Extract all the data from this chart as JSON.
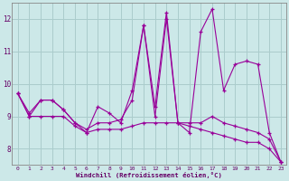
{
  "background_color": "#cce8e8",
  "grid_color": "#aacccc",
  "line_color": "#990099",
  "marker": "+",
  "xlabel": "Windchill (Refroidissement éolien,°C)",
  "xlim": [
    -0.5,
    23.5
  ],
  "ylim": [
    7.5,
    12.5
  ],
  "yticks": [
    8,
    9,
    10,
    11,
    12
  ],
  "xticks": [
    0,
    1,
    2,
    3,
    4,
    5,
    6,
    7,
    8,
    9,
    10,
    11,
    12,
    13,
    14,
    15,
    16,
    17,
    18,
    19,
    20,
    21,
    22,
    23
  ],
  "lines": [
    [
      9.7,
      9.1,
      9.5,
      9.5,
      9.2,
      8.8,
      8.6,
      8.8,
      8.8,
      8.9,
      9.5,
      11.8,
      9.3,
      12.2,
      8.8,
      8.8,
      8.8,
      9.0,
      8.8,
      8.7,
      8.6,
      8.5,
      8.3,
      7.6
    ],
    [
      9.7,
      9.0,
      9.5,
      9.5,
      9.2,
      8.8,
      8.5,
      9.3,
      9.1,
      8.8,
      9.8,
      11.8,
      9.0,
      12.0,
      8.8,
      8.5,
      11.6,
      12.3,
      9.8,
      10.6,
      10.7,
      10.6,
      8.5,
      7.6
    ],
    [
      9.7,
      9.0,
      9.0,
      9.0,
      9.0,
      8.7,
      8.5,
      8.6,
      8.6,
      8.6,
      8.7,
      8.8,
      8.8,
      8.8,
      8.8,
      8.7,
      8.6,
      8.5,
      8.4,
      8.3,
      8.2,
      8.2,
      8.0,
      7.6
    ]
  ]
}
